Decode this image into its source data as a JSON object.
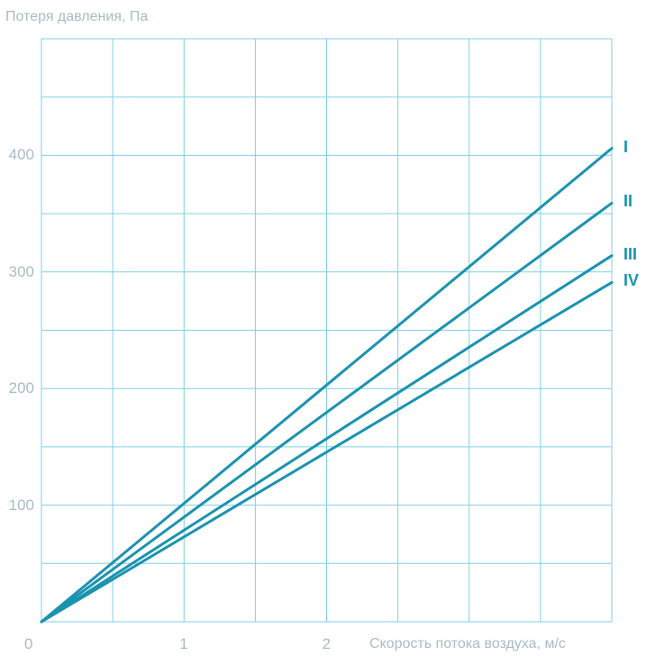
{
  "chart_data": {
    "type": "line",
    "ylabel": "Потеря давления, Па",
    "xlabel": "Скорость потока воздуха, м/с",
    "xlim": [
      0,
      4
    ],
    "ylim": [
      0,
      500
    ],
    "x_ticks": [
      "0",
      "1",
      "2"
    ],
    "x_tick_values": [
      0,
      1,
      2
    ],
    "y_ticks": [
      "100",
      "200",
      "300",
      "400"
    ],
    "y_tick_values": [
      100,
      200,
      300,
      400
    ],
    "grid": true,
    "series": [
      {
        "name": "I",
        "x": [
          0,
          4
        ],
        "y": [
          0,
          406
        ]
      },
      {
        "name": "II",
        "x": [
          0,
          4
        ],
        "y": [
          0,
          359
        ]
      },
      {
        "name": "III",
        "x": [
          0,
          4
        ],
        "y": [
          0,
          314
        ]
      },
      {
        "name": "IV",
        "x": [
          0,
          4
        ],
        "y": [
          0,
          291
        ]
      }
    ],
    "colors": {
      "grid": "#7fd0e6",
      "line": "#1a93b0",
      "text": "#a9bcc4",
      "series_label": "#1a93b0"
    }
  }
}
